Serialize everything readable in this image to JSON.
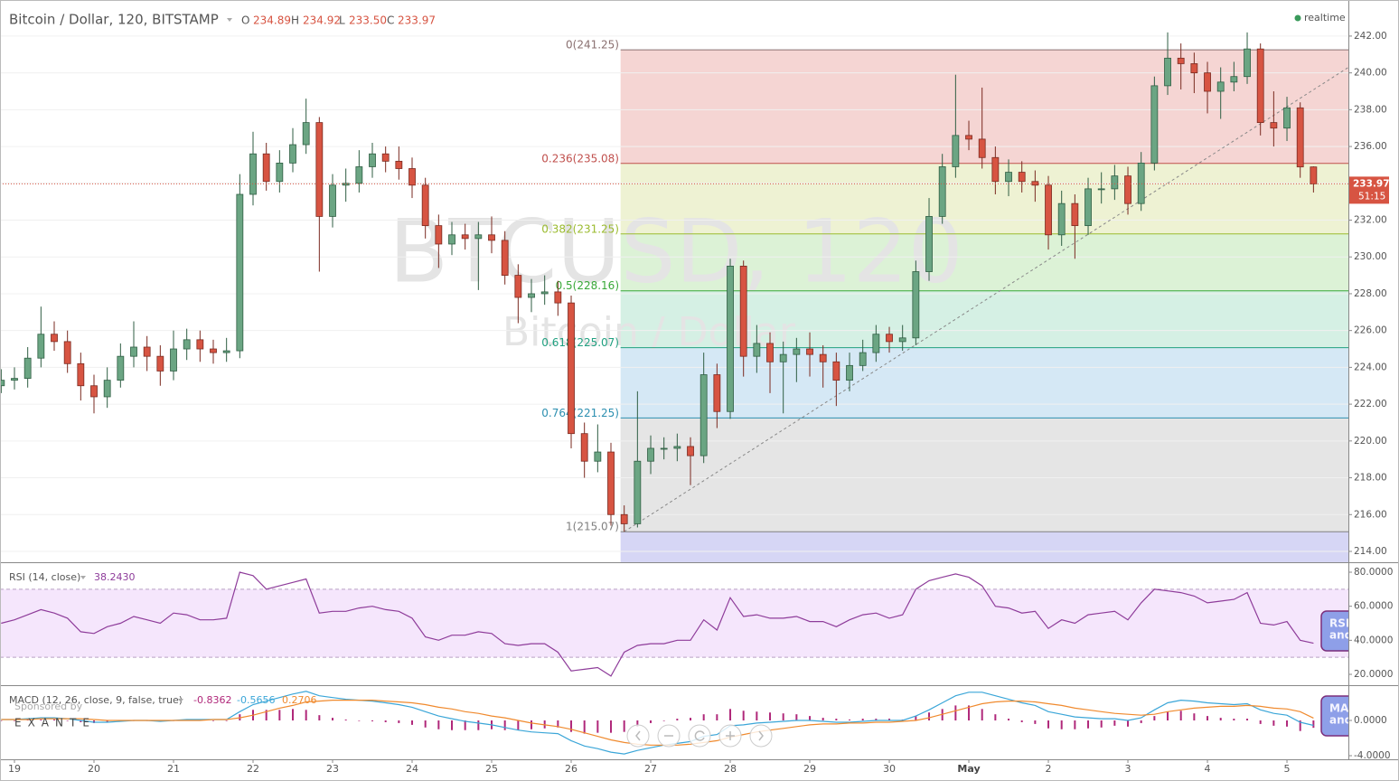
{
  "chart_data": [
    {
      "type": "candlestick",
      "title": "Bitcoin / Dollar, 120, BITSTAMP",
      "legend_keys": [
        "O",
        "H",
        "L",
        "C"
      ],
      "legend_values": [
        "234.89",
        "234.92",
        "233.50",
        "233.97"
      ],
      "status": "realtime",
      "watermark": "BTCUSD, 120",
      "watermark_sub": "Bitcoin / Dollar",
      "countdown": "51:15",
      "sponsor": "Sponsored by",
      "sponsor_name": "EXANTE",
      "colors": {
        "up": "#6ba583",
        "down": "#d75442",
        "last": "#d75442"
      },
      "grid": true,
      "categories": [
        null,
        "19",
        null,
        null,
        null,
        null,
        null,
        "20",
        null,
        null,
        null,
        null,
        null,
        "21",
        null,
        null,
        null,
        null,
        null,
        "22",
        null,
        null,
        null,
        null,
        null,
        "23",
        null,
        null,
        null,
        null,
        null,
        "24",
        null,
        null,
        null,
        null,
        null,
        "25",
        null,
        null,
        null,
        null,
        null,
        "26",
        null,
        null,
        null,
        null,
        null,
        "27",
        null,
        null,
        null,
        null,
        null,
        "28",
        null,
        null,
        null,
        null,
        null,
        "29",
        null,
        null,
        null,
        null,
        null,
        "30",
        null,
        null,
        null,
        null,
        null,
        "May",
        null,
        null,
        null,
        null,
        null,
        "2",
        null,
        null,
        null,
        null,
        null,
        "3",
        null,
        null,
        null,
        null,
        null,
        "4",
        null,
        null,
        null,
        null,
        null,
        "5",
        null,
        null
      ],
      "open": [
        223.0,
        223.3,
        223.4,
        224.5,
        225.8,
        225.4,
        224.2,
        223.0,
        222.4,
        223.3,
        224.6,
        225.1,
        224.6,
        223.8,
        225.0,
        225.5,
        225.0,
        224.8,
        224.9,
        233.4,
        235.6,
        234.1,
        235.1,
        236.1,
        237.3,
        232.2,
        233.9,
        234.0,
        234.9,
        235.6,
        235.2,
        234.8,
        233.9,
        231.7,
        230.7,
        231.2,
        231.0,
        231.2,
        230.9,
        229.0,
        227.8,
        228.0,
        228.1,
        227.5,
        220.4,
        218.9,
        219.4,
        216.0,
        215.5,
        218.9,
        219.6,
        219.6,
        219.7,
        219.2,
        223.6,
        221.6,
        229.5,
        224.6,
        225.3,
        224.3,
        224.7,
        225.0,
        224.7,
        224.3,
        223.3,
        224.1,
        224.8,
        225.8,
        225.4,
        225.6,
        229.2,
        232.2,
        234.9,
        236.6,
        236.4,
        235.4,
        234.1,
        234.6,
        234.1,
        233.9,
        231.2,
        232.9,
        231.7,
        233.7,
        233.7,
        234.4,
        232.9,
        235.1,
        239.3,
        240.8,
        240.5,
        240.0,
        239.0,
        239.5,
        239.8,
        241.3,
        237.3,
        237.0,
        238.1,
        234.89
      ],
      "high": [
        223.9,
        224.0,
        225.1,
        227.3,
        226.5,
        226.0,
        224.8,
        223.6,
        224.0,
        225.3,
        226.5,
        225.7,
        225.2,
        226.0,
        226.1,
        226.0,
        225.5,
        225.6,
        234.5,
        236.8,
        236.2,
        235.8,
        237.0,
        238.6,
        237.6,
        234.5,
        234.8,
        235.8,
        236.2,
        236.0,
        236.0,
        235.4,
        234.3,
        232.3,
        231.9,
        231.8,
        231.9,
        232.2,
        231.4,
        229.6,
        228.8,
        229.0,
        228.7,
        227.9,
        221.0,
        220.9,
        219.9,
        216.5,
        222.7,
        220.3,
        220.2,
        220.4,
        220.2,
        224.8,
        224.2,
        229.9,
        229.8,
        226.3,
        225.9,
        225.4,
        225.6,
        225.9,
        225.2,
        224.8,
        224.8,
        225.5,
        226.3,
        226.2,
        226.3,
        229.8,
        233.2,
        235.6,
        239.9,
        237.4,
        239.2,
        236.0,
        235.3,
        235.2,
        234.7,
        234.4,
        233.6,
        233.4,
        234.3,
        234.6,
        235.0,
        234.9,
        235.7,
        239.8,
        242.2,
        241.6,
        241.1,
        240.6,
        240.3,
        240.6,
        242.2,
        241.6,
        239.0,
        238.7,
        238.4,
        234.92
      ],
      "low": [
        222.6,
        222.8,
        222.9,
        224.0,
        224.9,
        223.7,
        222.2,
        221.5,
        221.8,
        222.9,
        224.0,
        223.8,
        223.0,
        223.3,
        224.4,
        224.3,
        224.2,
        224.3,
        224.5,
        232.8,
        233.6,
        233.5,
        234.6,
        235.6,
        229.2,
        231.6,
        233.0,
        233.5,
        234.3,
        234.6,
        234.2,
        233.2,
        231.0,
        229.4,
        230.1,
        230.4,
        228.2,
        230.2,
        228.5,
        226.4,
        227.0,
        227.4,
        226.8,
        219.6,
        218.0,
        218.3,
        215.4,
        215.07,
        215.3,
        218.2,
        219.0,
        218.9,
        217.6,
        218.8,
        220.7,
        221.2,
        223.5,
        223.7,
        222.6,
        221.5,
        223.2,
        223.5,
        222.9,
        221.9,
        222.7,
        223.8,
        224.3,
        224.8,
        224.9,
        225.2,
        228.7,
        231.8,
        234.3,
        235.8,
        234.8,
        233.4,
        233.3,
        233.5,
        233.0,
        230.4,
        230.6,
        229.9,
        231.2,
        232.9,
        233.1,
        232.3,
        232.5,
        234.7,
        238.8,
        239.1,
        238.9,
        237.8,
        237.5,
        239.0,
        239.4,
        236.6,
        236.0,
        236.3,
        234.3,
        233.5
      ],
      "close": [
        223.3,
        223.4,
        224.5,
        225.8,
        225.4,
        224.2,
        223.0,
        222.4,
        223.3,
        224.6,
        225.1,
        224.6,
        223.8,
        225.0,
        225.5,
        225.0,
        224.8,
        224.9,
        233.4,
        235.6,
        234.1,
        235.1,
        236.1,
        237.3,
        232.2,
        233.9,
        234.0,
        234.9,
        235.6,
        235.2,
        234.8,
        233.9,
        231.7,
        230.7,
        231.2,
        231.0,
        231.2,
        230.9,
        229.0,
        227.8,
        228.0,
        228.1,
        227.5,
        220.4,
        218.9,
        219.4,
        216.0,
        215.5,
        218.9,
        219.6,
        219.6,
        219.7,
        219.2,
        223.6,
        221.6,
        229.5,
        224.6,
        225.3,
        224.3,
        224.7,
        225.0,
        224.7,
        224.3,
        223.3,
        224.1,
        224.8,
        225.8,
        225.4,
        225.6,
        229.2,
        232.2,
        234.9,
        236.6,
        236.4,
        235.4,
        234.1,
        234.6,
        234.1,
        233.9,
        231.2,
        232.9,
        231.7,
        233.7,
        233.7,
        234.4,
        232.9,
        235.1,
        239.3,
        240.8,
        240.5,
        240.0,
        239.0,
        239.5,
        239.8,
        241.3,
        237.3,
        237.0,
        238.1,
        234.89,
        233.97
      ],
      "ylim": [
        213.41,
        243.96
      ],
      "yticks": [
        {
          "value": 214,
          "label": "214.00"
        },
        {
          "value": 216,
          "label": "216.00"
        },
        {
          "value": 218,
          "label": "218.00"
        },
        {
          "value": 220,
          "label": "220.00"
        },
        {
          "value": 222,
          "label": "222.00"
        },
        {
          "value": 224,
          "label": "224.00"
        },
        {
          "value": 226,
          "label": "226.00"
        },
        {
          "value": 228,
          "label": "228.00"
        },
        {
          "value": 230,
          "label": "230.00"
        },
        {
          "value": 232,
          "label": "232.00"
        },
        {
          "value": 234,
          "label": "234.00"
        },
        {
          "value": 236,
          "label": "236.00"
        },
        {
          "value": 238,
          "label": "238.00"
        },
        {
          "value": 240,
          "label": "240.00"
        },
        {
          "value": 242,
          "label": "242.00"
        }
      ],
      "fib_levels": [
        {
          "value": 241.25,
          "label": "0(241.25)",
          "color": "#8a7070",
          "fill": "#f5d5d3"
        },
        {
          "value": 235.08,
          "label": "0.236(235.08)",
          "color": "#c0504d",
          "fill": "#eef2d3"
        },
        {
          "value": 231.25,
          "label": "0.382(231.25)",
          "color": "#9bbb2f",
          "fill": "#dcf2d6"
        },
        {
          "value": 228.16,
          "label": "0.5(228.16)",
          "color": "#38a838",
          "fill": "#d5f0e4"
        },
        {
          "value": 225.07,
          "label": "0.618(225.07)",
          "color": "#20a080",
          "fill": "#d5e8f5"
        },
        {
          "value": 221.25,
          "label": "0.764(221.25)",
          "color": "#2c8fb0",
          "fill": "#e5e5e5"
        },
        {
          "value": 215.07,
          "label": "1(215.07)",
          "color": "#808080",
          "fill": "#d6d6f5"
        }
      ],
      "trendline": [
        215.07,
        240.3
      ]
    },
    {
      "type": "line",
      "title": "RSI (14, close)",
      "value_label": "38.2430",
      "color": "#8e3c9a",
      "band": [
        30,
        70
      ],
      "band_color": "#f5e6fc",
      "side_tab": [
        "RSI",
        "and"
      ],
      "values": [
        50,
        52,
        55,
        58,
        56,
        53,
        45,
        44,
        48,
        50,
        54,
        52,
        50,
        56,
        55,
        52,
        52,
        53,
        80,
        78,
        70,
        72,
        74,
        76,
        56,
        57,
        57,
        59,
        60,
        58,
        57,
        53,
        42,
        40,
        43,
        43,
        45,
        44,
        38,
        37,
        38,
        38,
        33,
        22,
        23,
        24,
        19,
        33,
        37,
        38,
        38,
        40,
        40,
        52,
        46,
        65,
        54,
        55,
        53,
        53,
        54,
        51,
        51,
        48,
        52,
        55,
        56,
        53,
        55,
        70,
        75,
        77,
        79,
        77,
        72,
        60,
        59,
        56,
        57,
        47,
        52,
        50,
        55,
        56,
        57,
        52,
        62,
        70,
        69,
        68,
        66,
        62,
        63,
        64,
        68,
        50,
        49,
        51,
        40,
        38.243
      ],
      "ylim": [
        13.63,
        85.84
      ],
      "yticks": [
        {
          "value": 20,
          "label": "20.0000"
        },
        {
          "value": 40,
          "label": "40.0000"
        },
        {
          "value": 60,
          "label": "60.0000"
        },
        {
          "value": 80,
          "label": "80.0000"
        }
      ]
    },
    {
      "type": "macd",
      "title": "MACD (12, 26, close, 9, false, true)",
      "side_tab": [
        "MACD",
        "and"
      ],
      "series": [
        {
          "kind": "histogram",
          "color": "#b0287a",
          "values": [
            0.0,
            0.0,
            0.1,
            0.1,
            0.1,
            0.0,
            -0.2,
            -0.3,
            -0.2,
            -0.1,
            0.0,
            0.0,
            -0.1,
            0.0,
            0.1,
            0.1,
            0.0,
            0.0,
            0.7,
            1.2,
            1.2,
            1.2,
            1.3,
            1.2,
            0.6,
            0.3,
            0.1,
            0.0,
            -0.1,
            -0.2,
            -0.3,
            -0.5,
            -0.8,
            -1.0,
            -1.1,
            -1.1,
            -1.1,
            -1.0,
            -1.1,
            -1.1,
            -1.0,
            -0.9,
            -0.8,
            -1.3,
            -1.5,
            -1.4,
            -1.4,
            -1.3,
            -0.7,
            -0.3,
            0.0,
            0.2,
            0.3,
            0.7,
            0.7,
            1.3,
            1.1,
            1.0,
            0.9,
            0.8,
            0.7,
            0.5,
            0.3,
            0.2,
            0.1,
            0.2,
            0.2,
            0.2,
            0.1,
            0.5,
            0.9,
            1.3,
            1.7,
            1.7,
            1.3,
            0.7,
            0.2,
            -0.2,
            -0.4,
            -0.9,
            -1.0,
            -1.0,
            -0.9,
            -0.8,
            -0.6,
            -0.7,
            -0.3,
            0.5,
            1.0,
            1.1,
            0.8,
            0.5,
            0.3,
            0.2,
            0.2,
            -0.4,
            -0.6,
            -0.7,
            -1.2,
            -0.8362
          ]
        },
        {
          "kind": "line",
          "color": "#3ba6d8",
          "values": [
            0.1,
            0.1,
            0.2,
            0.3,
            0.3,
            0.2,
            0.0,
            -0.2,
            -0.2,
            -0.1,
            0.0,
            0.0,
            -0.1,
            0.0,
            0.1,
            0.1,
            0.1,
            0.1,
            1.0,
            1.8,
            2.2,
            2.6,
            3.0,
            3.3,
            2.8,
            2.6,
            2.4,
            2.3,
            2.2,
            2.0,
            1.8,
            1.5,
            1.0,
            0.5,
            0.2,
            -0.1,
            -0.3,
            -0.5,
            -0.8,
            -1.1,
            -1.3,
            -1.4,
            -1.5,
            -2.3,
            -2.9,
            -3.2,
            -3.6,
            -3.8,
            -3.4,
            -3.1,
            -2.8,
            -2.6,
            -2.4,
            -1.8,
            -1.6,
            -0.6,
            -0.5,
            -0.3,
            -0.2,
            -0.1,
            0.0,
            0.0,
            -0.1,
            -0.2,
            -0.2,
            -0.1,
            0.0,
            0.0,
            0.0,
            0.5,
            1.2,
            2.0,
            2.8,
            3.2,
            3.2,
            2.8,
            2.4,
            2.0,
            1.7,
            1.0,
            0.7,
            0.4,
            0.3,
            0.2,
            0.2,
            0.0,
            0.3,
            1.2,
            2.0,
            2.3,
            2.2,
            2.0,
            1.9,
            1.8,
            1.9,
            1.2,
            0.8,
            0.6,
            -0.2,
            -0.5656
          ]
        },
        {
          "kind": "line",
          "color": "#f08a2e",
          "values": [
            0.1,
            0.1,
            0.1,
            0.2,
            0.2,
            0.2,
            0.2,
            0.1,
            0.0,
            0.0,
            0.0,
            0.0,
            0.0,
            0.0,
            0.0,
            0.0,
            0.1,
            0.1,
            0.3,
            0.6,
            1.0,
            1.4,
            1.7,
            2.1,
            2.2,
            2.3,
            2.3,
            2.3,
            2.3,
            2.2,
            2.1,
            2.0,
            1.8,
            1.5,
            1.3,
            1.0,
            0.8,
            0.5,
            0.3,
            0.0,
            -0.3,
            -0.5,
            -0.7,
            -1.0,
            -1.4,
            -1.8,
            -2.2,
            -2.5,
            -2.7,
            -2.8,
            -2.8,
            -2.8,
            -2.7,
            -2.5,
            -2.3,
            -1.9,
            -1.6,
            -1.3,
            -1.1,
            -0.9,
            -0.7,
            -0.5,
            -0.4,
            -0.4,
            -0.3,
            -0.3,
            -0.2,
            -0.2,
            -0.1,
            0.0,
            0.3,
            0.7,
            1.1,
            1.5,
            1.9,
            2.1,
            2.2,
            2.2,
            2.1,
            1.9,
            1.7,
            1.4,
            1.2,
            1.0,
            0.8,
            0.7,
            0.6,
            0.7,
            1.0,
            1.2,
            1.4,
            1.5,
            1.6,
            1.6,
            1.7,
            1.6,
            1.4,
            1.3,
            1.0,
            0.2706
          ]
        }
      ],
      "ylim": [
        -4.41,
        4.0
      ],
      "yticks": [
        {
          "value": 0,
          "label": "0.0000"
        },
        {
          "value": -4,
          "label": "-4.0000"
        }
      ]
    }
  ]
}
